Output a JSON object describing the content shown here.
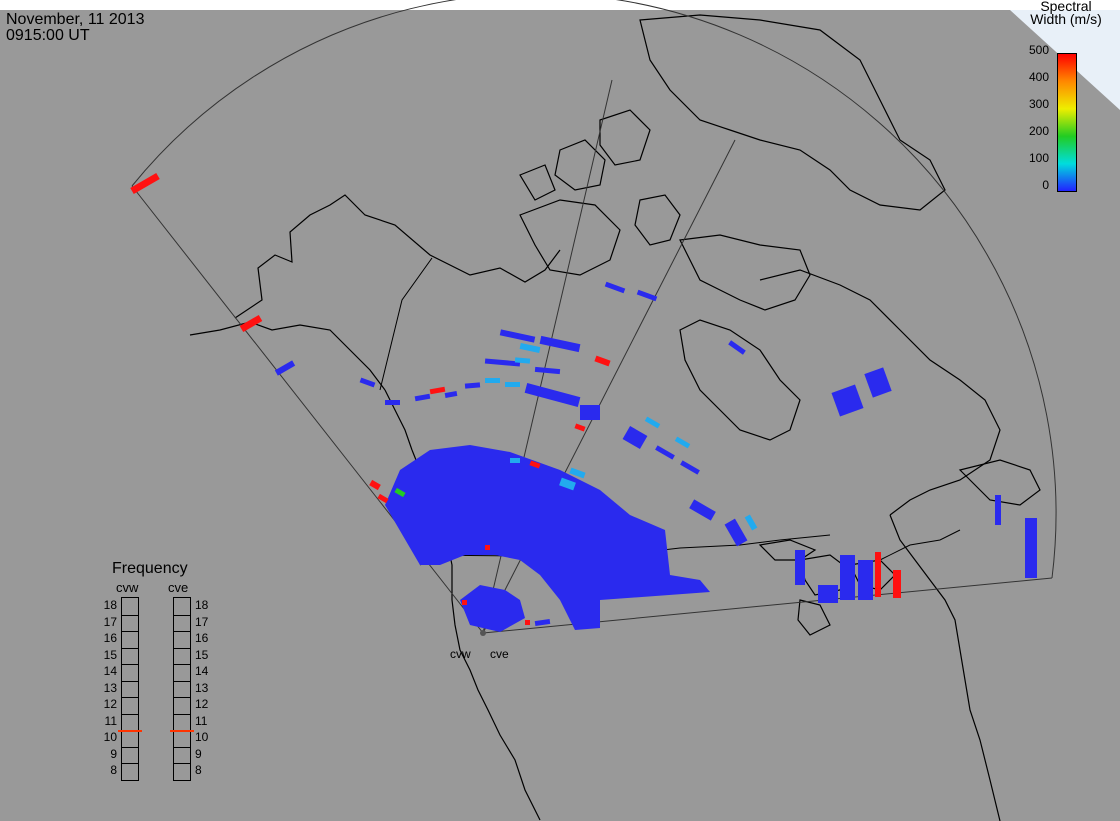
{
  "header": {
    "date": "November, 11 2013",
    "time": "0915:00 UT"
  },
  "colorbar": {
    "title_line1": "Spectral",
    "title_line2": "Width (m/s)",
    "ticks": [
      "500",
      "400",
      "300",
      "200",
      "100",
      "0"
    ],
    "gradient": [
      "#ff0000",
      "#ff8800",
      "#eeee00",
      "#22cc22",
      "#00dddd",
      "#2222ff"
    ]
  },
  "frequency": {
    "title": "Frequency",
    "radars": [
      "cvw",
      "cve"
    ],
    "scale": [
      "18",
      "17",
      "16",
      "15",
      "14",
      "13",
      "12",
      "11",
      "10",
      "9",
      "8"
    ],
    "cvw_value_mhz": 10.5,
    "cve_value_mhz": 10.5,
    "marker_color": "#ff3300"
  },
  "sites": [
    "cvw",
    "cve"
  ],
  "colors": {
    "background": "#999999",
    "low_width": "#2a2aee",
    "cyan": "#22aaee",
    "high_width": "#ff1111",
    "green": "#22cc22"
  }
}
